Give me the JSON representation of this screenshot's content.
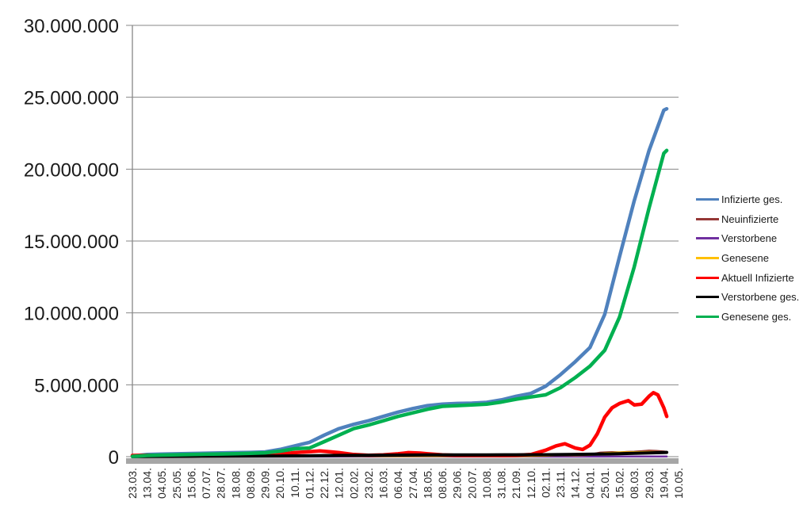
{
  "chart_data": {
    "type": "line",
    "legend_position": "right",
    "grid": true,
    "x_axis": {
      "categories": [
        "23.03.",
        "13.04.",
        "04.05.",
        "25.05.",
        "15.06.",
        "07.07.",
        "28.07.",
        "18.08.",
        "08.09.",
        "29.09.",
        "20.10.",
        "10.11.",
        "01.12.",
        "22.12.",
        "12.01.",
        "02.02.",
        "23.02.",
        "16.03.",
        "06.04.",
        "27.04.",
        "18.05.",
        "08.06.",
        "29.06.",
        "20.07.",
        "10.08.",
        "31.08.",
        "21.09.",
        "12.10.",
        "02.11.",
        "23.11.",
        "14.12.",
        "04.01.",
        "25.01.",
        "15.02.",
        "08.03.",
        "29.03.",
        "19.04.",
        "10.05."
      ]
    },
    "y_axis": {
      "min": 0,
      "max": 30000000,
      "tick_interval": 5000000,
      "tick_labels": [
        "0",
        "5.000.000",
        "10.000.000",
        "15.000.000",
        "20.000.000",
        "25.000.000",
        "30.000.000"
      ]
    },
    "series": [
      {
        "name": "Infizierte ges.",
        "color": "#4F81BD",
        "width": 4.5,
        "points": [
          [
            0,
            50000
          ],
          [
            1,
            150000
          ],
          [
            2,
            180000
          ],
          [
            3,
            200000
          ],
          [
            4,
            220000
          ],
          [
            5,
            240000
          ],
          [
            6,
            260000
          ],
          [
            7,
            280000
          ],
          [
            8,
            300000
          ],
          [
            9,
            330000
          ],
          [
            10,
            500000
          ],
          [
            11,
            750000
          ],
          [
            12,
            1000000
          ],
          [
            13,
            1500000
          ],
          [
            14,
            1950000
          ],
          [
            15,
            2250000
          ],
          [
            16,
            2500000
          ],
          [
            17,
            2800000
          ],
          [
            18,
            3100000
          ],
          [
            19,
            3350000
          ],
          [
            20,
            3550000
          ],
          [
            21,
            3650000
          ],
          [
            22,
            3700000
          ],
          [
            23,
            3720000
          ],
          [
            24,
            3780000
          ],
          [
            25,
            3950000
          ],
          [
            26,
            4200000
          ],
          [
            27,
            4400000
          ],
          [
            28,
            4900000
          ],
          [
            29,
            5700000
          ],
          [
            30,
            6600000
          ],
          [
            31,
            7600000
          ],
          [
            32,
            9900000
          ],
          [
            33,
            13900000
          ],
          [
            34,
            17800000
          ],
          [
            35,
            21300000
          ],
          [
            36,
            24100000
          ],
          [
            36.2,
            24200000
          ]
        ]
      },
      {
        "name": "Neuinfizierte",
        "color": "#953735",
        "width": 2.5,
        "points": [
          [
            0,
            10000
          ],
          [
            2,
            10000
          ],
          [
            4,
            8000
          ],
          [
            6,
            10000
          ],
          [
            8,
            12000
          ],
          [
            10,
            30000
          ],
          [
            12,
            60000
          ],
          [
            13,
            70000
          ],
          [
            14,
            60000
          ],
          [
            15,
            40000
          ],
          [
            16,
            30000
          ],
          [
            17,
            30000
          ],
          [
            18,
            40000
          ],
          [
            19,
            50000
          ],
          [
            20,
            40000
          ],
          [
            22,
            30000
          ],
          [
            24,
            30000
          ],
          [
            26,
            35000
          ],
          [
            27,
            50000
          ],
          [
            28,
            90000
          ],
          [
            29,
            130000
          ],
          [
            30,
            100000
          ],
          [
            31,
            150000
          ],
          [
            31.7,
            280000
          ],
          [
            32,
            300000
          ],
          [
            32.5,
            320000
          ],
          [
            33,
            300000
          ],
          [
            33.5,
            330000
          ],
          [
            34,
            350000
          ],
          [
            34.5,
            380000
          ],
          [
            35,
            420000
          ],
          [
            35.5,
            400000
          ],
          [
            36,
            360000
          ],
          [
            36.2,
            330000
          ]
        ]
      },
      {
        "name": "Verstorbene",
        "color": "#7030A0",
        "width": 2.5,
        "points": [
          [
            0,
            2000
          ],
          [
            10,
            3000
          ],
          [
            20,
            4000
          ],
          [
            30,
            6000
          ],
          [
            33,
            10000
          ],
          [
            36.2,
            12000
          ]
        ]
      },
      {
        "name": "Genesene",
        "color": "#FFC000",
        "width": 2.5,
        "points": [
          [
            0,
            5000
          ],
          [
            4,
            10000
          ],
          [
            8,
            15000
          ],
          [
            10,
            20000
          ],
          [
            12,
            50000
          ],
          [
            13,
            60000
          ],
          [
            14,
            55000
          ],
          [
            16,
            35000
          ],
          [
            18,
            35000
          ],
          [
            20,
            40000
          ],
          [
            24,
            30000
          ],
          [
            26,
            30000
          ],
          [
            28,
            70000
          ],
          [
            29,
            110000
          ],
          [
            30,
            100000
          ],
          [
            31,
            120000
          ],
          [
            32,
            250000
          ],
          [
            33,
            300000
          ],
          [
            34,
            310000
          ],
          [
            35,
            330000
          ],
          [
            36,
            320000
          ],
          [
            36.2,
            300000
          ]
        ]
      },
      {
        "name": "Aktuell Infizierte",
        "color": "#FF0000",
        "width": 4.5,
        "points": [
          [
            0,
            80000
          ],
          [
            1,
            100000
          ],
          [
            2,
            60000
          ],
          [
            3,
            50000
          ],
          [
            4,
            50000
          ],
          [
            5,
            50000
          ],
          [
            6,
            60000
          ],
          [
            7,
            70000
          ],
          [
            8,
            80000
          ],
          [
            9,
            100000
          ],
          [
            10,
            170000
          ],
          [
            11,
            280000
          ],
          [
            12,
            350000
          ],
          [
            12.7,
            400000
          ],
          [
            13.5,
            330000
          ],
          [
            14,
            280000
          ],
          [
            15,
            150000
          ],
          [
            16,
            100000
          ],
          [
            17,
            120000
          ],
          [
            18,
            200000
          ],
          [
            18.7,
            280000
          ],
          [
            19.5,
            250000
          ],
          [
            20,
            200000
          ],
          [
            21,
            120000
          ],
          [
            22,
            90000
          ],
          [
            23,
            90000
          ],
          [
            24,
            100000
          ],
          [
            25,
            80000
          ],
          [
            26,
            100000
          ],
          [
            27,
            150000
          ],
          [
            28,
            450000
          ],
          [
            28.7,
            750000
          ],
          [
            29.3,
            900000
          ],
          [
            30,
            600000
          ],
          [
            30.5,
            500000
          ],
          [
            31,
            800000
          ],
          [
            31.5,
            1600000
          ],
          [
            32,
            2750000
          ],
          [
            32.5,
            3400000
          ],
          [
            33,
            3700000
          ],
          [
            33.6,
            3900000
          ],
          [
            34,
            3600000
          ],
          [
            34.5,
            3650000
          ],
          [
            35,
            4200000
          ],
          [
            35.3,
            4450000
          ],
          [
            35.6,
            4300000
          ],
          [
            36,
            3400000
          ],
          [
            36.2,
            2800000
          ]
        ]
      },
      {
        "name": "Verstorbene ges.",
        "color": "#000000",
        "width": 4,
        "points": [
          [
            0,
            5000
          ],
          [
            4,
            20000
          ],
          [
            8,
            40000
          ],
          [
            10,
            50000
          ],
          [
            12,
            60000
          ],
          [
            14,
            90000
          ],
          [
            16,
            100000
          ],
          [
            18,
            110000
          ],
          [
            20,
            120000
          ],
          [
            24,
            120000
          ],
          [
            26,
            130000
          ],
          [
            28,
            140000
          ],
          [
            30,
            160000
          ],
          [
            32,
            190000
          ],
          [
            33,
            210000
          ],
          [
            34,
            230000
          ],
          [
            35,
            260000
          ],
          [
            36,
            290000
          ],
          [
            36.2,
            300000
          ]
        ]
      },
      {
        "name": "Genesene ges.",
        "color": "#00B050",
        "width": 4.5,
        "points": [
          [
            0,
            20000
          ],
          [
            1,
            80000
          ],
          [
            2,
            110000
          ],
          [
            3,
            130000
          ],
          [
            4,
            150000
          ],
          [
            5,
            170000
          ],
          [
            6,
            190000
          ],
          [
            7,
            210000
          ],
          [
            8,
            230000
          ],
          [
            9,
            270000
          ],
          [
            10,
            380000
          ],
          [
            11,
            550000
          ],
          [
            12,
            600000
          ],
          [
            13,
            1050000
          ],
          [
            14,
            1500000
          ],
          [
            15,
            1950000
          ],
          [
            16,
            2200000
          ],
          [
            17,
            2500000
          ],
          [
            18,
            2800000
          ],
          [
            19,
            3050000
          ],
          [
            20,
            3300000
          ],
          [
            21,
            3500000
          ],
          [
            22,
            3550000
          ],
          [
            23,
            3600000
          ],
          [
            24,
            3650000
          ],
          [
            25,
            3800000
          ],
          [
            26,
            4000000
          ],
          [
            27,
            4150000
          ],
          [
            28,
            4300000
          ],
          [
            29,
            4800000
          ],
          [
            30,
            5500000
          ],
          [
            31,
            6300000
          ],
          [
            32,
            7400000
          ],
          [
            33,
            9700000
          ],
          [
            34,
            13200000
          ],
          [
            35,
            17300000
          ],
          [
            36,
            21100000
          ],
          [
            36.2,
            21300000
          ]
        ]
      }
    ]
  },
  "colors": {
    "gridline": "#878787",
    "axis_bar": "#A6A6A6",
    "y_label_text": "#1a1a1a",
    "x_label_text": "#262626",
    "background": "#FFFFFF"
  }
}
